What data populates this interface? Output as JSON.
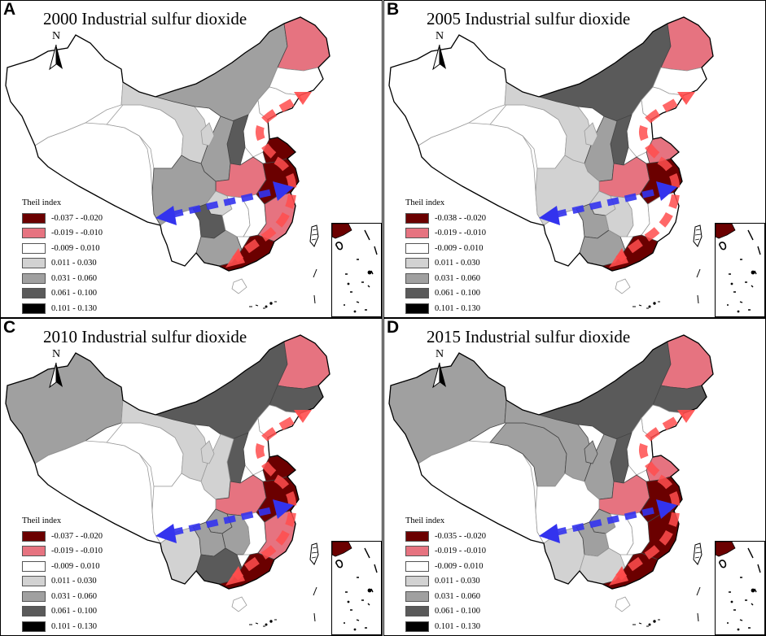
{
  "legend_title": "Theil index",
  "north_label": "N",
  "colors": {
    "c1": "#6b0000",
    "c2": "#e67380",
    "c3": "#ffffff",
    "c4": "#d2d2d2",
    "c5": "#a0a0a0",
    "c6": "#5a5a5a",
    "c7": "#000000",
    "red_arrow": "#ff4d4d",
    "blue_arrow": "#3333ee"
  },
  "panels": [
    {
      "label": "A",
      "title": "2000 Industrial sulfur dioxide",
      "legend": [
        "-0.037 - -0.020",
        "-0.019 - -0.010",
        "-0.009 - 0.010",
        "0.011 - 0.030",
        "0.031 - 0.060",
        "0.061 - 0.100",
        "0.101 - 0.130"
      ],
      "regions": {
        "xinjiang": "c3",
        "tibet": "c3",
        "qinghai": "c3",
        "gansu": "c4",
        "inner_mongolia": "c5",
        "heilongjiang": "c2",
        "jilin": "c3",
        "liaoning": "c3",
        "beijing_hebei": "c3",
        "shanxi": "c6",
        "shaanxi": "c5",
        "ningxia": "c4",
        "henan_hubei": "c2",
        "sichuan": "c5",
        "chongqing": "c4",
        "yunnan": "c3",
        "guizhou": "c6",
        "guangxi": "c5",
        "hunan": "c3",
        "jiangxi": "c3",
        "shandong": "c1",
        "jiangsu_anhui": "c1",
        "zhejiang_fujian": "c2",
        "guangdong": "c1",
        "hainan": "c3"
      }
    },
    {
      "label": "B",
      "title": "2005 Industrial sulfur dioxide",
      "legend": [
        "-0.038 - -0.020",
        "-0.019 - -0.010",
        "-0.009 - 0.010",
        "0.011 - 0.030",
        "0.031 - 0.060",
        "0.061 - 0.100",
        "0.101 - 0.130"
      ],
      "regions": {
        "xinjiang": "c3",
        "tibet": "c3",
        "qinghai": "c3",
        "gansu": "c4",
        "inner_mongolia": "c6",
        "heilongjiang": "c2",
        "jilin": "c3",
        "liaoning": "c3",
        "beijing_hebei": "c3",
        "shanxi": "c6",
        "shaanxi": "c5",
        "ningxia": "c4",
        "henan_hubei": "c2",
        "sichuan": "c4",
        "chongqing": "c4",
        "yunnan": "c3",
        "guizhou": "c5",
        "guangxi": "c5",
        "hunan": "c4",
        "jiangxi": "c3",
        "shandong": "c2",
        "jiangsu_anhui": "c1",
        "zhejiang_fujian": "c3",
        "guangdong": "c1",
        "hainan": "c3"
      }
    },
    {
      "label": "C",
      "title": "2010 Industrial sulfur dioxide",
      "legend": [
        "-0.037 - -0.020",
        "-0.019 - -0.010",
        "-0.009 - 0.010",
        "0.011 - 0.030",
        "0.031 - 0.060",
        "0.061 - 0.100",
        "0.101 - 0.130"
      ],
      "regions": {
        "xinjiang": "c5",
        "tibet": "c3",
        "qinghai": "c3",
        "gansu": "c4",
        "inner_mongolia": "c6",
        "heilongjiang": "c2",
        "jilin": "c6",
        "liaoning": "c3",
        "beijing_hebei": "c3",
        "shanxi": "c6",
        "shaanxi": "c4",
        "ningxia": "c4",
        "henan_hubei": "c2",
        "sichuan": "c3",
        "chongqing": "c5",
        "yunnan": "c4",
        "guizhou": "c5",
        "guangxi": "c6",
        "hunan": "c5",
        "jiangxi": "c3",
        "shandong": "c1",
        "jiangsu_anhui": "c1",
        "zhejiang_fujian": "c2",
        "guangdong": "c1",
        "hainan": "c3"
      }
    },
    {
      "label": "D",
      "title": "2015 Industrial sulfur dioxide",
      "legend": [
        "-0.035 - -0.020",
        "-0.019 - -0.010",
        "-0.009 - 0.010",
        "0.011 - 0.030",
        "0.031 - 0.060",
        "0.061 - 0.100",
        "0.101 - 0.130"
      ],
      "regions": {
        "xinjiang": "c5",
        "tibet": "c3",
        "qinghai": "c5",
        "gansu": "c5",
        "inner_mongolia": "c6",
        "heilongjiang": "c2",
        "jilin": "c6",
        "liaoning": "c3",
        "beijing_hebei": "c3",
        "shanxi": "c6",
        "shaanxi": "c5",
        "ningxia": "c5",
        "henan_hubei": "c2",
        "sichuan": "c3",
        "chongqing": "c5",
        "yunnan": "c4",
        "guizhou": "c5",
        "guangxi": "c4",
        "hunan": "c3",
        "jiangxi": "c3",
        "shandong": "c2",
        "jiangsu_anhui": "c1",
        "zhejiang_fujian": "c1",
        "guangdong": "c1",
        "hainan": "c3"
      }
    }
  ]
}
